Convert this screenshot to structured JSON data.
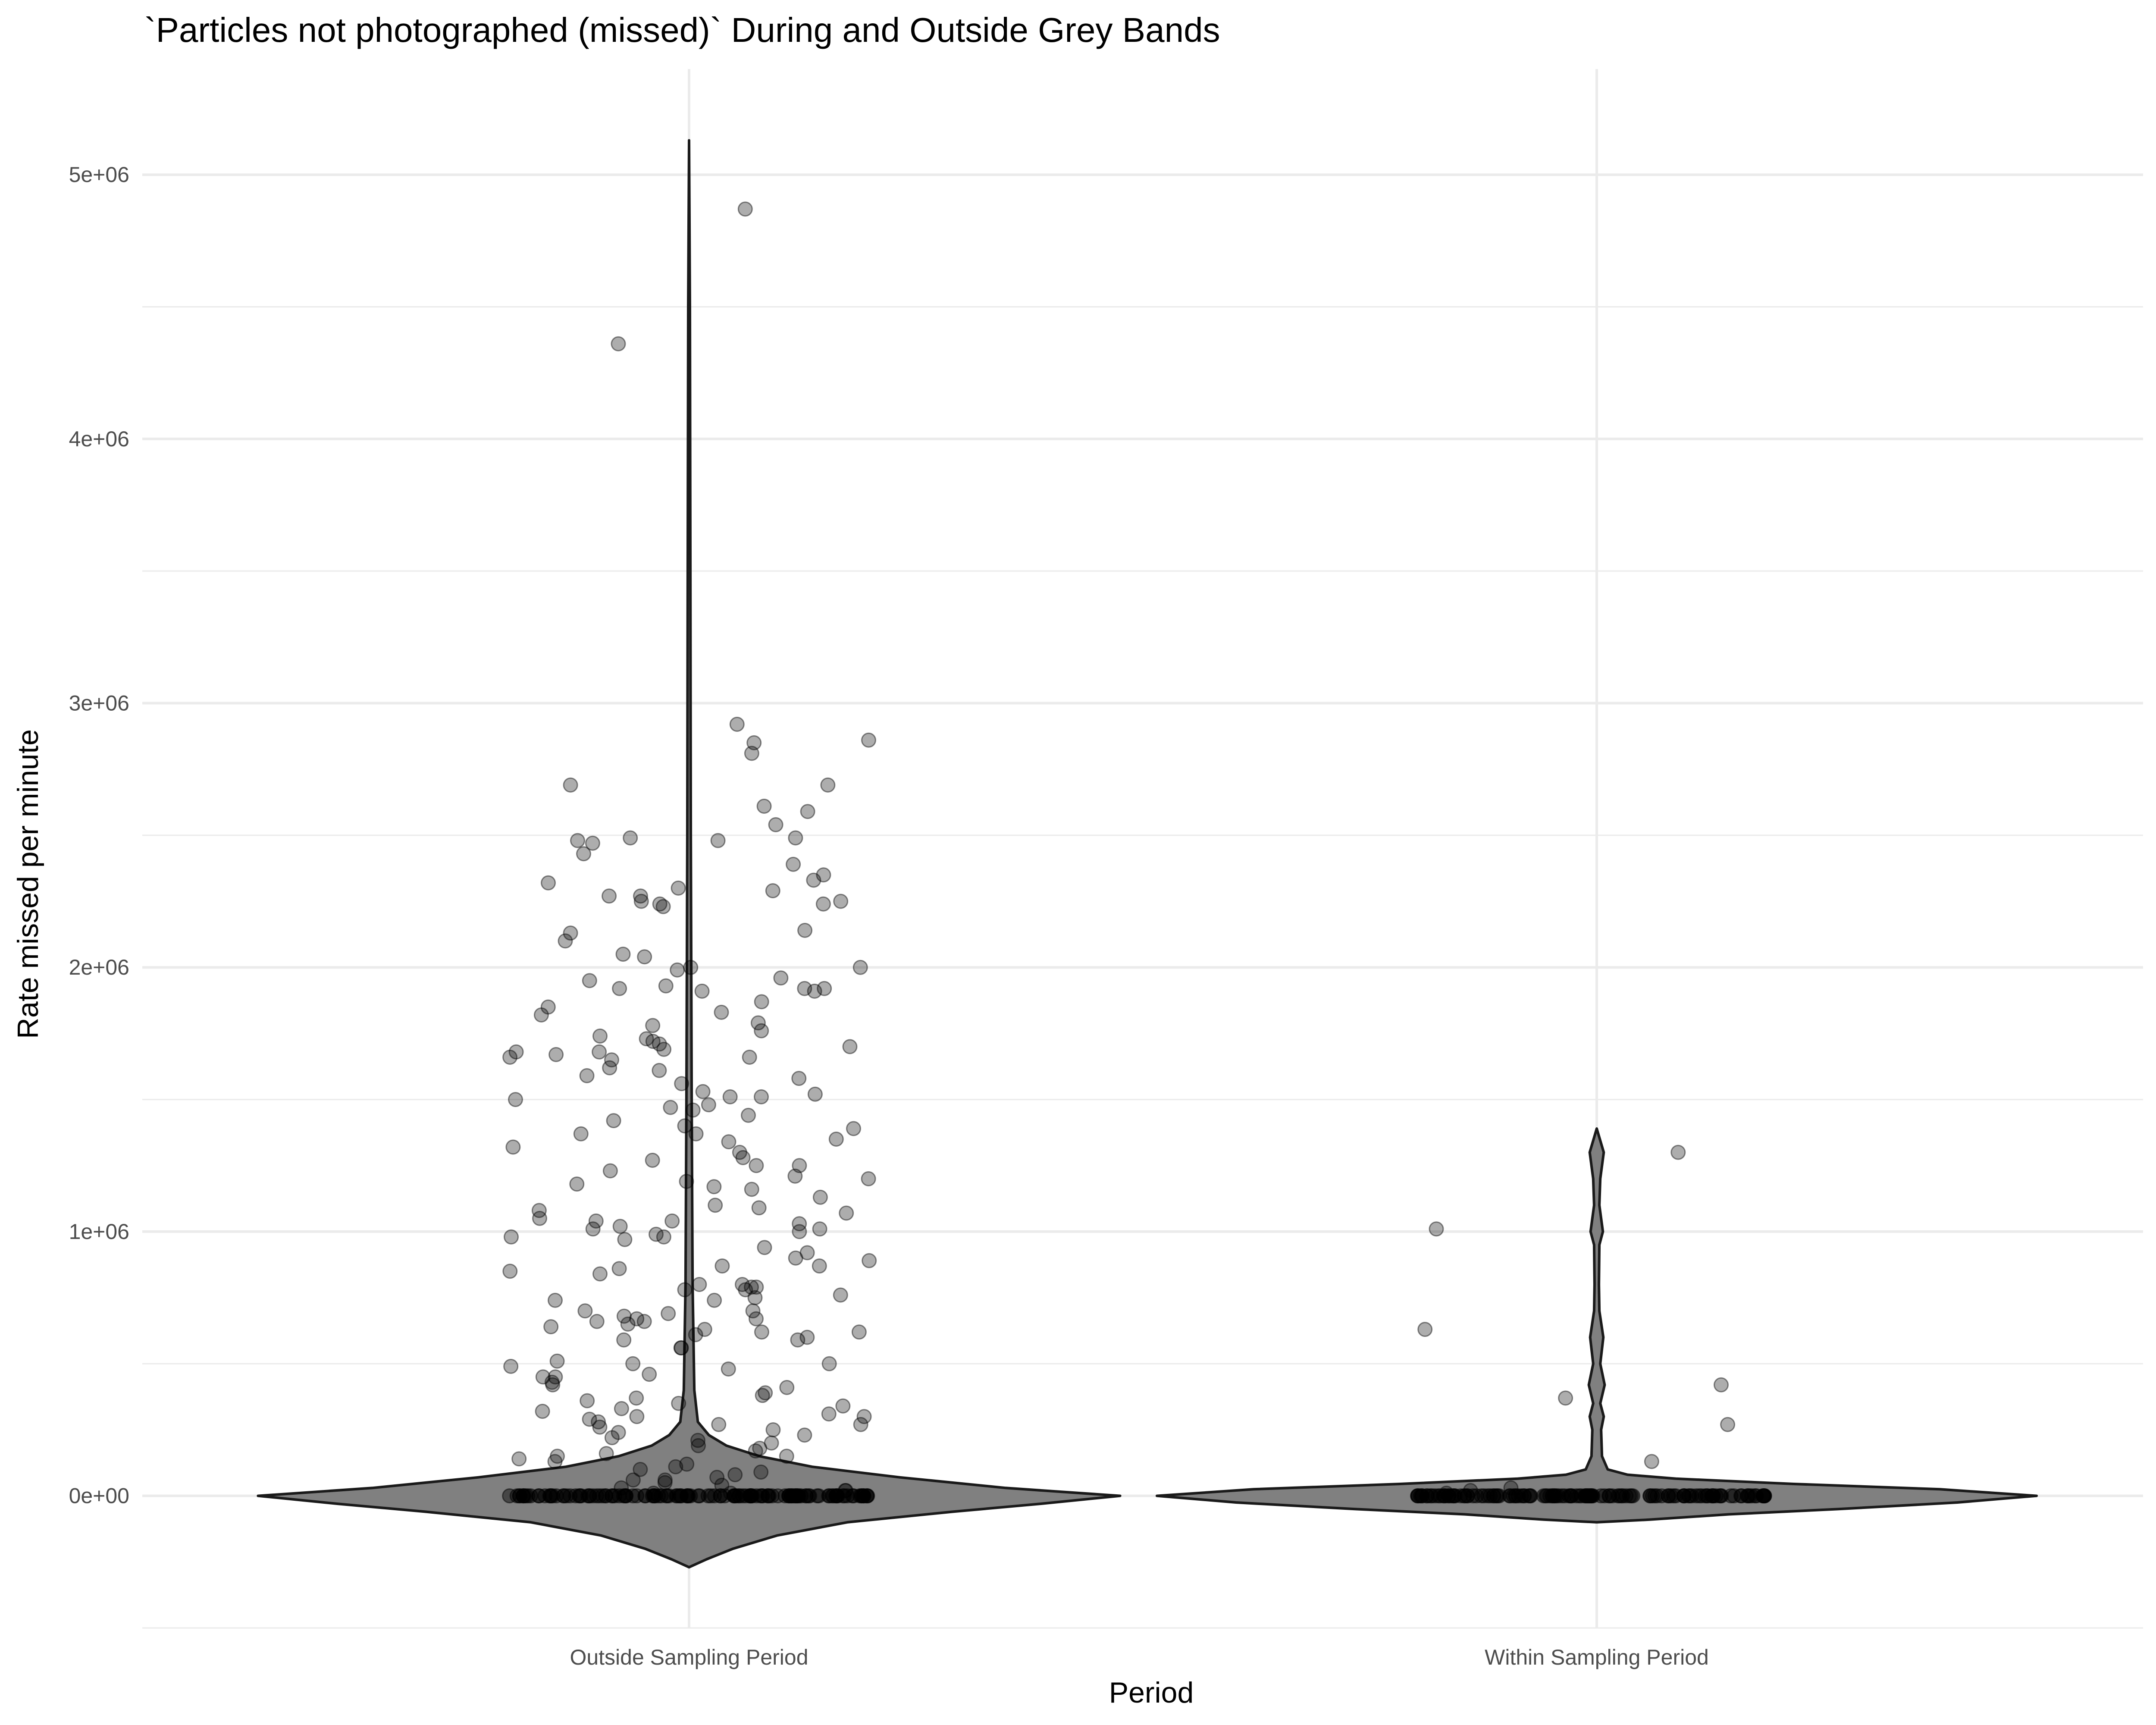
{
  "chart_data": {
    "type": "violin",
    "title": "`Particles not photographed (missed)` During and Outside Grey Bands",
    "xlabel": "Period",
    "ylabel": "Rate missed per minute",
    "categories": [
      "Outside Sampling Period",
      "Within Sampling Period"
    ],
    "ylim": [
      -500000,
      5400000
    ],
    "yticks": [
      0,
      1000000,
      2000000,
      3000000,
      4000000,
      5000000
    ],
    "ytick_labels": [
      "0e+00",
      "1e+06",
      "2e+06",
      "3e+06",
      "4e+06",
      "5e+06"
    ],
    "grid": true,
    "colors": {
      "violin_fill": "#808080",
      "violin_stroke": "#1a1a1a",
      "point": "#000000",
      "grid": "#ebebeb"
    },
    "violins": [
      {
        "category": "Outside Sampling Period",
        "profile": [
          [
            -270000,
            0.0
          ],
          [
            -240000,
            0.04
          ],
          [
            -200000,
            0.1
          ],
          [
            -150000,
            0.2
          ],
          [
            -100000,
            0.36
          ],
          [
            -60000,
            0.6
          ],
          [
            -30000,
            0.8
          ],
          [
            0,
            0.98
          ],
          [
            30000,
            0.72
          ],
          [
            70000,
            0.48
          ],
          [
            110000,
            0.28
          ],
          [
            150000,
            0.16
          ],
          [
            190000,
            0.085
          ],
          [
            230000,
            0.045
          ],
          [
            280000,
            0.02
          ],
          [
            400000,
            0.012
          ],
          [
            800000,
            0.008
          ],
          [
            1500000,
            0.006
          ],
          [
            2500000,
            0.004
          ],
          [
            3500000,
            0.003
          ],
          [
            4500000,
            0.002
          ],
          [
            5130000,
            0.0
          ]
        ]
      },
      {
        "category": "Within Sampling Period",
        "profile": [
          [
            -100000,
            0.0
          ],
          [
            -90000,
            0.12
          ],
          [
            -70000,
            0.3
          ],
          [
            -50000,
            0.55
          ],
          [
            -25000,
            0.82
          ],
          [
            0,
            1.0
          ],
          [
            25000,
            0.78
          ],
          [
            45000,
            0.45
          ],
          [
            65000,
            0.18
          ],
          [
            80000,
            0.07
          ],
          [
            100000,
            0.025
          ],
          [
            150000,
            0.012
          ],
          [
            250000,
            0.01
          ],
          [
            300000,
            0.016
          ],
          [
            350000,
            0.008
          ],
          [
            420000,
            0.018
          ],
          [
            500000,
            0.008
          ],
          [
            600000,
            0.015
          ],
          [
            700000,
            0.006
          ],
          [
            800000,
            0.005
          ],
          [
            950000,
            0.006
          ],
          [
            1000000,
            0.014
          ],
          [
            1100000,
            0.006
          ],
          [
            1200000,
            0.008
          ],
          [
            1300000,
            0.016
          ],
          [
            1390000,
            0.0
          ]
        ]
      }
    ],
    "points": [
      {
        "category": "Outside Sampling Period",
        "values": [
          4870000,
          4360000,
          2920000,
          2860000,
          2850000,
          2810000,
          2690000,
          2690000,
          2610000,
          2590000,
          2540000,
          2490000,
          2490000,
          2480000,
          2480000,
          2470000,
          2430000,
          2390000,
          2350000,
          2330000,
          2320000,
          2300000,
          2290000,
          2270000,
          2270000,
          2250000,
          2250000,
          2240000,
          2240000,
          2230000,
          2140000,
          2130000,
          2100000,
          2050000,
          2040000,
          2000000,
          2000000,
          1990000,
          1960000,
          1950000,
          1930000,
          1920000,
          1920000,
          1920000,
          1910000,
          1910000,
          1870000,
          1850000,
          1830000,
          1820000,
          1790000,
          1780000,
          1760000,
          1740000,
          1730000,
          1720000,
          1710000,
          1700000,
          1690000,
          1680000,
          1680000,
          1670000,
          1660000,
          1660000,
          1650000,
          1620000,
          1610000,
          1590000,
          1580000,
          1560000,
          1530000,
          1520000,
          1510000,
          1510000,
          1500000,
          1480000,
          1470000,
          1460000,
          1440000,
          1420000,
          1400000,
          1390000,
          1370000,
          1370000,
          1350000,
          1340000,
          1320000,
          1300000,
          1280000,
          1270000,
          1250000,
          1250000,
          1230000,
          1210000,
          1200000,
          1190000,
          1180000,
          1170000,
          1160000,
          1130000,
          1100000,
          1090000,
          1080000,
          1070000,
          1050000,
          1040000,
          1040000,
          1030000,
          1020000,
          1010000,
          1010000,
          1000000,
          990000,
          980000,
          980000,
          970000,
          940000,
          920000,
          900000,
          890000,
          870000,
          870000,
          860000,
          850000,
          840000,
          800000,
          800000,
          790000,
          790000,
          780000,
          780000,
          760000,
          750000,
          740000,
          740000,
          700000,
          700000,
          690000,
          680000,
          670000,
          670000,
          660000,
          660000,
          650000,
          640000,
          630000,
          620000,
          620000,
          610000,
          600000,
          590000,
          590000,
          560000,
          560000,
          510000,
          500000,
          500000,
          490000,
          480000,
          460000,
          450000,
          450000,
          430000,
          420000,
          410000,
          390000,
          380000,
          370000,
          360000,
          350000,
          340000,
          330000,
          320000,
          310000,
          300000,
          300000,
          290000,
          280000,
          270000,
          270000,
          260000,
          250000,
          240000,
          230000,
          220000,
          210000,
          200000,
          190000,
          180000,
          170000,
          160000,
          150000,
          150000,
          140000,
          130000,
          120000,
          110000,
          100000,
          90000,
          80000,
          70000,
          60000,
          60000,
          50000,
          40000,
          30000,
          20000,
          20000,
          10000,
          10000
        ]
      },
      {
        "category": "Within Sampling Period",
        "values": [
          1300000,
          1010000,
          630000,
          420000,
          370000,
          270000,
          130000,
          30000,
          20000,
          10000
        ]
      }
    ]
  }
}
